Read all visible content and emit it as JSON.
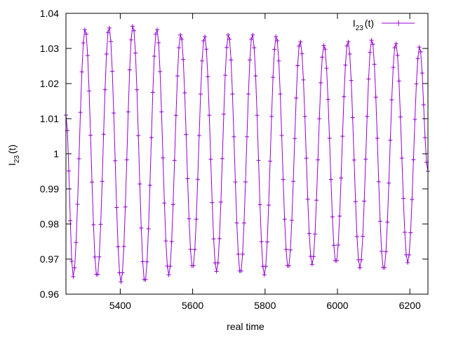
{
  "chart_data": {
    "type": "line",
    "title": "",
    "xlabel": "real time",
    "ylabel": {
      "main": "I",
      "subscript": "23",
      "suffix": "(t)"
    },
    "xlim": [
      5250,
      6250
    ],
    "ylim": [
      0.96,
      1.04
    ],
    "x_ticks": [
      5400,
      5600,
      5800,
      6000,
      6200
    ],
    "x_tick_labels": [
      "5400",
      "5600",
      "5800",
      "6000",
      "6200"
    ],
    "y_ticks": [
      0.96,
      0.97,
      0.98,
      0.99,
      1.0,
      1.01,
      1.02,
      1.03,
      1.04
    ],
    "y_tick_labels": [
      "0.96",
      "0.97",
      "0.98",
      "0.99",
      "1",
      "1.01",
      "1.02",
      "1.03",
      "1.04"
    ],
    "grid": false,
    "legend_position": "top-right",
    "marker": "plus",
    "color": "#9400d3",
    "series": [
      {
        "name": {
          "main": "I",
          "subscript": "23",
          "suffix": "(t)"
        },
        "sampling_step": 4,
        "extrema": [
          {
            "x": 5250,
            "y": 1.011
          },
          {
            "x": 5270,
            "y": 0.965
          },
          {
            "x": 5303,
            "y": 1.0355
          },
          {
            "x": 5336,
            "y": 0.965
          },
          {
            "x": 5369,
            "y": 1.036
          },
          {
            "x": 5402,
            "y": 0.9635
          },
          {
            "x": 5435,
            "y": 1.0365
          },
          {
            "x": 5468,
            "y": 0.9635
          },
          {
            "x": 5501,
            "y": 1.0355
          },
          {
            "x": 5534,
            "y": 0.9655
          },
          {
            "x": 5567,
            "y": 1.034
          },
          {
            "x": 5600,
            "y": 0.9675
          },
          {
            "x": 5633,
            "y": 1.0335
          },
          {
            "x": 5666,
            "y": 0.9665
          },
          {
            "x": 5699,
            "y": 1.034
          },
          {
            "x": 5732,
            "y": 0.966
          },
          {
            "x": 5765,
            "y": 1.034
          },
          {
            "x": 5798,
            "y": 0.9655
          },
          {
            "x": 5831,
            "y": 1.0335
          },
          {
            "x": 5864,
            "y": 0.9675
          },
          {
            "x": 5897,
            "y": 1.032
          },
          {
            "x": 5930,
            "y": 0.9685
          },
          {
            "x": 5963,
            "y": 1.031
          },
          {
            "x": 5996,
            "y": 0.969
          },
          {
            "x": 6029,
            "y": 1.032
          },
          {
            "x": 6062,
            "y": 0.9675
          },
          {
            "x": 6095,
            "y": 1.0325
          },
          {
            "x": 6128,
            "y": 0.967
          },
          {
            "x": 6161,
            "y": 1.0315
          },
          {
            "x": 6194,
            "y": 0.969
          },
          {
            "x": 6227,
            "y": 1.0305
          },
          {
            "x": 6250,
            "y": 0.995
          }
        ]
      }
    ]
  }
}
